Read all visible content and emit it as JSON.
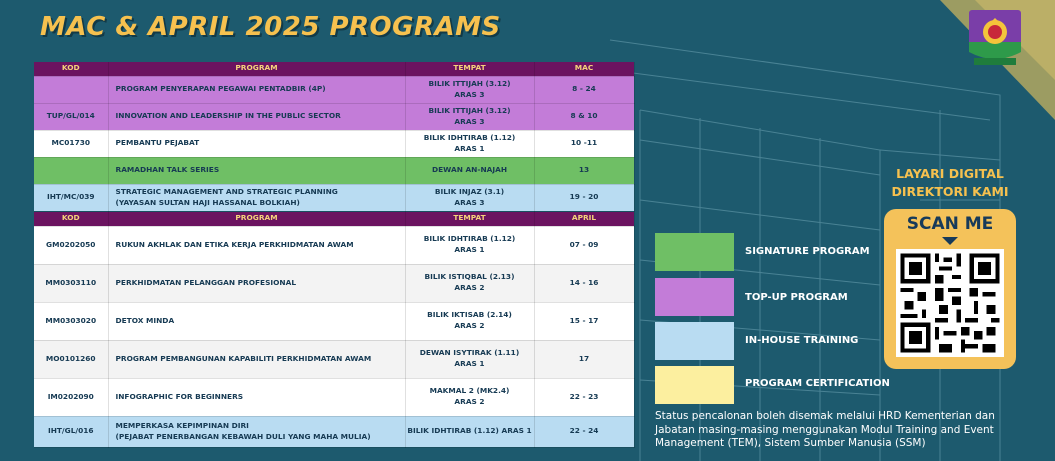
{
  "title": "MAC & APRIL 2025 PROGRAMS",
  "colors": {
    "background": "#1d5a6e",
    "header": "#6b1360",
    "signature": "#6fbf65",
    "top_up": "#c37cd8",
    "in_house": "#b9dcf2",
    "certification": "#fcef9f",
    "title": "#f6c14f"
  },
  "march_table": {
    "headers": [
      "KOD",
      "PROGRAM",
      "TEMPAT",
      "MAC"
    ],
    "rows": [
      {
        "kod": "",
        "program": "PROGRAM PENYERAPAN PEGAWAI PENTADBIR (4P)",
        "tempat_1": "BILIK ITTIJAH (3.12)",
        "tempat_2": "ARAS 3",
        "tarikh": "8 - 24"
      },
      {
        "kod": "TUP/GL/014",
        "program": "INNOVATION AND LEADERSHIP IN THE PUBLIC SECTOR",
        "tempat_1": "BILIK ITTIJAH (3.12)",
        "tempat_2": "ARAS 3",
        "tarikh": "8 & 10"
      },
      {
        "kod": "MC01730",
        "program": "PEMBANTU PEJABAT",
        "tempat_1": "BILIK IDHTIRAB (1.12)",
        "tempat_2": "ARAS 1",
        "tarikh": "10 -11"
      },
      {
        "kod": "",
        "program": "RAMADHAN TALK SERIES",
        "tempat_1": "DEWAN AN-NAJAH",
        "tempat_2": "",
        "tarikh": "13"
      },
      {
        "kod": "IHT/MC/039",
        "program_1": "STRATEGIC MANAGEMENT AND STRATEGIC PLANNING",
        "program_2": "(YAYASAN SULTAN HAJI HASSANAL BOLKIAH)",
        "tempat_1": "BILIK INJAZ (3.1)",
        "tempat_2": "ARAS 3",
        "tarikh": "19 - 20"
      }
    ]
  },
  "april_table": {
    "headers": [
      "KOD",
      "PROGRAM",
      "TEMPAT",
      "APRIL"
    ],
    "rows": [
      {
        "kod": "GM0202050",
        "program": "RUKUN AKHLAK DAN ETIKA KERJA PERKHIDMATAN AWAM",
        "tempat_1": "BILIK IDHTIRAB (1.12)",
        "tempat_2": "ARAS 1",
        "tarikh": "07 - 09"
      },
      {
        "kod": "MM0303110",
        "program": "PERKHIDMATAN PELANGGAN PROFESIONAL",
        "tempat_1": "BILIK ISTIQBAL (2.13)",
        "tempat_2": "ARAS 2",
        "tarikh": "14 - 16"
      },
      {
        "kod": "MM0303020",
        "program": "DETOX MINDA",
        "tempat_1": "BILIK IKTISAB (2.14)",
        "tempat_2": "ARAS 2",
        "tarikh": "15 - 17"
      },
      {
        "kod": "MO0101260",
        "program": "PROGRAM PEMBANGUNAN KAPABILITI PERKHIDMATAN AWAM",
        "tempat_1": "DEWAN ISYTIRAK (1.11)",
        "tempat_2": "ARAS 1",
        "tarikh": "17"
      },
      {
        "kod": "IM0202090",
        "program": "INFOGRAPHIC FOR BEGINNERS",
        "tempat_1": "MAKMAL 2 (MK2.4)",
        "tempat_2": "ARAS 2",
        "tarikh": "22 - 23"
      },
      {
        "kod": "IHT/GL/016",
        "program_1": "MEMPERKASA KEPIMPINAN DIRI",
        "program_2": "(PEJABAT PENERBANGAN KEBAWAH DULI YANG MAHA MULIA)",
        "tempat_1": "BILIK IDHTIRAB (1.12) ARAS 1",
        "tempat_2": "",
        "tarikh": "22 - 24"
      }
    ]
  },
  "legend": [
    {
      "label": "SIGNATURE PROGRAM",
      "color": "#6fbf65"
    },
    {
      "label": "TOP-UP PROGRAM",
      "color": "#c37cd8"
    },
    {
      "label": "IN-HOUSE TRAINING",
      "color": "#b9dcf2"
    },
    {
      "label": "PROGRAM CERTIFICATION",
      "color": "#fcef9f"
    }
  ],
  "note": "Status pencalonan boleh disemak melalui HRD Kementerian dan Jabatan masing-masing menggunakan Modul Training and Event Management (TEM), Sistem Sumber Manusia (SSM)",
  "directory": {
    "line_1": "LAYARI DIGITAL",
    "line_2": "DIREKTORI KAMI",
    "scan_label": "SCAN ME"
  }
}
